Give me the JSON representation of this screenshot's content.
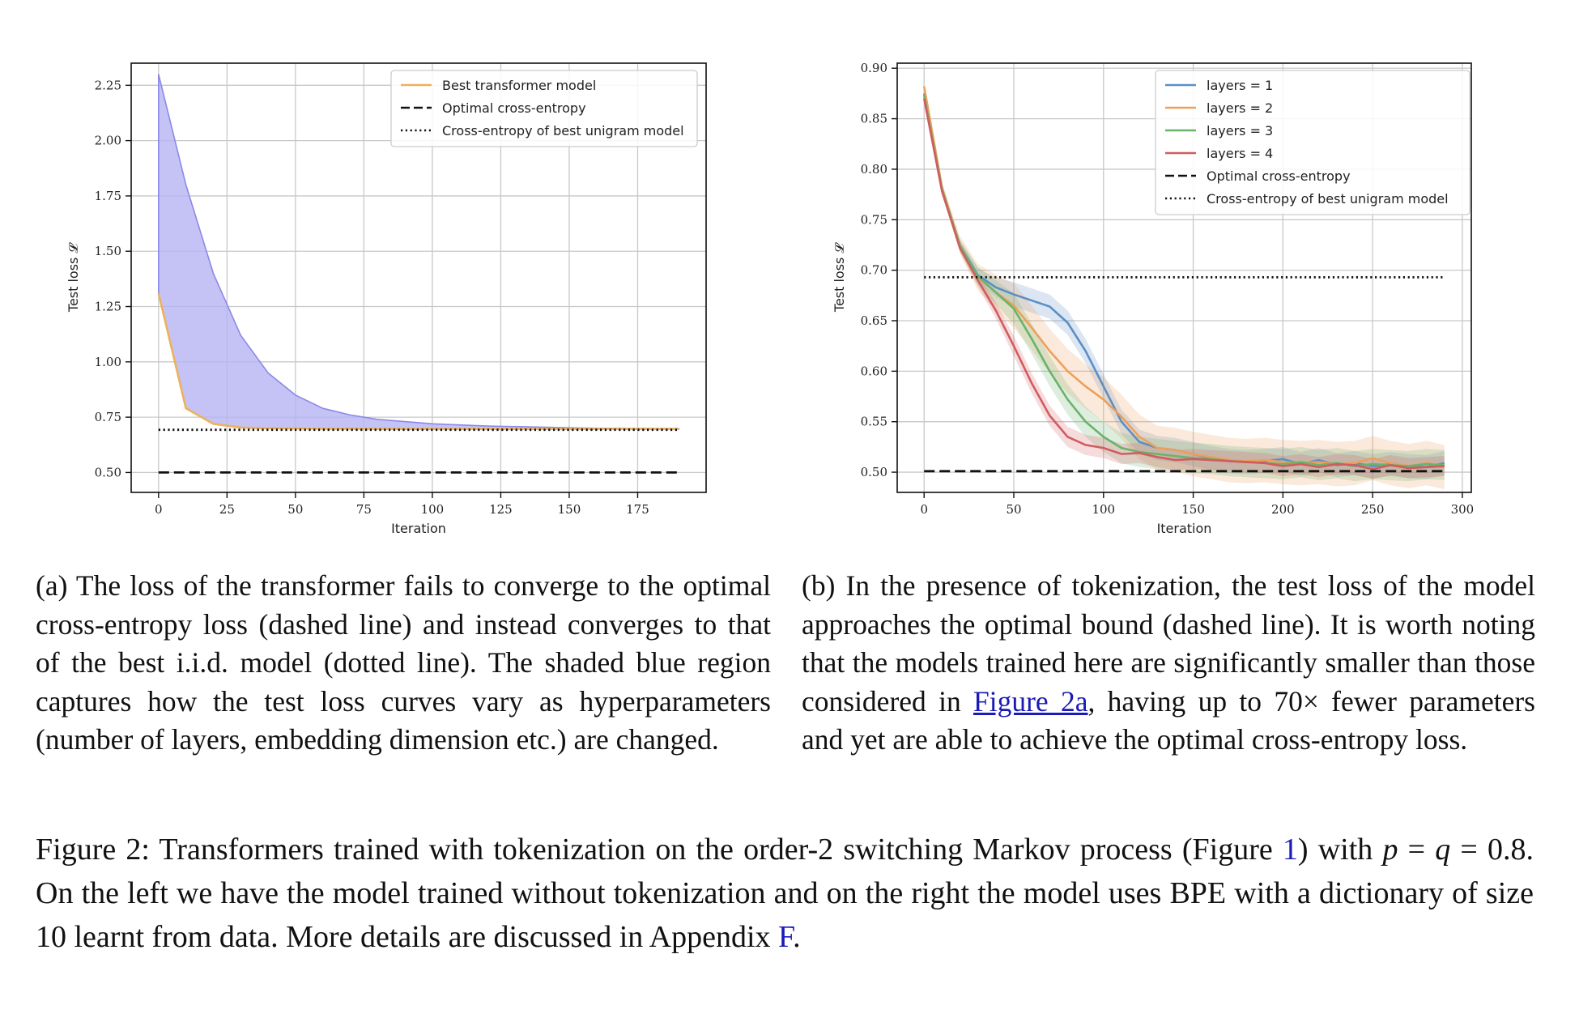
{
  "figure": {
    "caption_label": "Figure 2:",
    "caption_part1": " Transformers trained with tokenization on the order-2 switching Markov process (Figure ",
    "caption_ref_figure": "1",
    "caption_part2": ") with ",
    "caption_math_p": "p",
    "caption_eq1": " = ",
    "caption_math_q": "q",
    "caption_eq2": " = 0.8. On the left we have the model trained without tokenization and on the right the model uses BPE with a dictionary of size 10 learnt from data. More details are discussed in Appendix ",
    "caption_ref_appendix": "F",
    "caption_end": "."
  },
  "subfigure_a": {
    "caption": "(a) The loss of the transformer fails to converge to the optimal cross-entropy loss (dashed line) and instead converges to that of the best i.i.d. model (dotted line). The shaded blue region captures how the test loss curves vary as hyperparameters (number of layers, embedding dimension etc.) are changed."
  },
  "subfigure_b": {
    "caption_part1": "(b) In the presence of tokenization, the test loss of the model approaches the optimal bound (dashed line). It is worth noting that the models trained here are significantly smaller than those considered in ",
    "caption_ref": "Figure 2a",
    "caption_part2": ", having up to 70× fewer parameters and yet are able to achieve the optimal cross-entropy loss."
  },
  "chart_data": [
    {
      "type": "line",
      "xlabel": "Iteration",
      "ylabel": "Test loss 𝓛",
      "xlim": [
        -10,
        200
      ],
      "ylim": [
        0.41,
        2.35
      ],
      "xticks": [
        0,
        25,
        50,
        75,
        100,
        125,
        150,
        175
      ],
      "yticks": [
        0.5,
        0.75,
        1.0,
        1.25,
        1.5,
        1.75,
        2.0,
        2.25
      ],
      "ytick_labels": [
        "0.50",
        "0.75",
        "1.00",
        "1.25",
        "1.50",
        "1.75",
        "2.00",
        "2.25"
      ],
      "grid": true,
      "legend_position": "top-right",
      "band": {
        "x": [
          0,
          10,
          20,
          25,
          30,
          40,
          50,
          60,
          70,
          80,
          100,
          120,
          140,
          160,
          190
        ],
        "upper": [
          2.3,
          1.8,
          1.4,
          1.26,
          1.12,
          0.95,
          0.85,
          0.79,
          0.76,
          0.74,
          0.72,
          0.71,
          0.705,
          0.7,
          0.698
        ],
        "lower": [
          1.31,
          0.79,
          0.72,
          0.71,
          0.703,
          0.7,
          0.698,
          0.697,
          0.697,
          0.696,
          0.696,
          0.696,
          0.696,
          0.696,
          0.696
        ],
        "color": "#b7b4f2"
      },
      "series": [
        {
          "name": "Best transformer model",
          "color": "#eeb15a",
          "style": "solid",
          "x": [
            0,
            10,
            20,
            30,
            40,
            60,
            100,
            150,
            190
          ],
          "y": [
            1.31,
            0.79,
            0.72,
            0.703,
            0.7,
            0.698,
            0.697,
            0.697,
            0.697
          ]
        },
        {
          "name": "Optimal cross-entropy",
          "color": "#111111",
          "style": "dashed",
          "x": [
            0,
            190
          ],
          "y": [
            0.5,
            0.5
          ]
        },
        {
          "name": "Cross-entropy of best unigram model",
          "color": "#111111",
          "style": "dotted",
          "x": [
            0,
            190
          ],
          "y": [
            0.693,
            0.693
          ]
        }
      ]
    },
    {
      "type": "line",
      "xlabel": "Iteration",
      "ylabel": "Test loss 𝓛",
      "xlim": [
        -15,
        305
      ],
      "ylim": [
        0.48,
        0.905
      ],
      "xticks": [
        0,
        50,
        100,
        150,
        200,
        250,
        300
      ],
      "yticks": [
        0.5,
        0.55,
        0.6,
        0.65,
        0.7,
        0.75,
        0.8,
        0.85,
        0.9
      ],
      "ytick_labels": [
        "0.50",
        "0.55",
        "0.60",
        "0.65",
        "0.70",
        "0.75",
        "0.80",
        "0.85",
        "0.90"
      ],
      "grid": true,
      "legend_position": "top-right",
      "series": [
        {
          "name": "layers = 1",
          "color": "#5b8fc5",
          "style": "solid",
          "band_width": 0.012,
          "x": [
            0,
            10,
            20,
            30,
            40,
            50,
            60,
            70,
            80,
            90,
            100,
            110,
            120,
            130,
            140,
            150,
            160,
            170,
            180,
            190,
            200,
            210,
            220,
            230,
            240,
            250,
            260,
            270,
            280,
            290
          ],
          "y": [
            0.875,
            0.78,
            0.725,
            0.695,
            0.683,
            0.676,
            0.67,
            0.664,
            0.648,
            0.62,
            0.585,
            0.55,
            0.53,
            0.524,
            0.522,
            0.518,
            0.514,
            0.511,
            0.51,
            0.511,
            0.513,
            0.508,
            0.512,
            0.507,
            0.509,
            0.506,
            0.508,
            0.506,
            0.505,
            0.509
          ]
        },
        {
          "name": "layers = 2",
          "color": "#eda05a",
          "style": "solid",
          "band_width": 0.022,
          "x": [
            0,
            10,
            20,
            30,
            40,
            50,
            60,
            70,
            80,
            90,
            100,
            110,
            120,
            130,
            140,
            150,
            160,
            170,
            180,
            190,
            200,
            210,
            220,
            230,
            240,
            250,
            260,
            270,
            280,
            290
          ],
          "y": [
            0.882,
            0.782,
            0.725,
            0.693,
            0.678,
            0.665,
            0.643,
            0.62,
            0.6,
            0.585,
            0.572,
            0.555,
            0.535,
            0.524,
            0.522,
            0.518,
            0.515,
            0.512,
            0.511,
            0.512,
            0.51,
            0.509,
            0.51,
            0.508,
            0.509,
            0.514,
            0.509,
            0.506,
            0.509,
            0.505
          ]
        },
        {
          "name": "layers = 3",
          "color": "#6ab36a",
          "style": "solid",
          "band_width": 0.015,
          "x": [
            0,
            10,
            20,
            30,
            40,
            50,
            60,
            70,
            80,
            90,
            100,
            110,
            120,
            130,
            140,
            150,
            160,
            170,
            180,
            190,
            200,
            210,
            220,
            230,
            240,
            250,
            260,
            270,
            280,
            290
          ],
          "y": [
            0.873,
            0.78,
            0.724,
            0.694,
            0.678,
            0.662,
            0.632,
            0.6,
            0.572,
            0.55,
            0.535,
            0.524,
            0.52,
            0.518,
            0.516,
            0.514,
            0.513,
            0.511,
            0.51,
            0.509,
            0.508,
            0.51,
            0.507,
            0.509,
            0.506,
            0.508,
            0.507,
            0.506,
            0.508,
            0.507
          ]
        },
        {
          "name": "layers = 4",
          "color": "#d15c5f",
          "style": "solid",
          "band_width": 0.01,
          "x": [
            0,
            10,
            20,
            30,
            40,
            50,
            60,
            70,
            80,
            90,
            100,
            110,
            120,
            130,
            140,
            150,
            160,
            170,
            180,
            190,
            200,
            210,
            220,
            230,
            240,
            250,
            260,
            270,
            280,
            290
          ],
          "y": [
            0.87,
            0.778,
            0.722,
            0.69,
            0.66,
            0.625,
            0.588,
            0.556,
            0.535,
            0.527,
            0.524,
            0.518,
            0.519,
            0.515,
            0.512,
            0.513,
            0.512,
            0.511,
            0.51,
            0.509,
            0.506,
            0.508,
            0.505,
            0.508,
            0.507,
            0.503,
            0.507,
            0.504,
            0.505,
            0.506
          ]
        },
        {
          "name": "Optimal cross-entropy",
          "color": "#111111",
          "style": "dashed",
          "x": [
            0,
            290
          ],
          "y": [
            0.501,
            0.501
          ]
        },
        {
          "name": "Cross-entropy of best unigram model",
          "color": "#111111",
          "style": "dotted",
          "x": [
            0,
            290
          ],
          "y": [
            0.693,
            0.693
          ]
        }
      ]
    }
  ]
}
